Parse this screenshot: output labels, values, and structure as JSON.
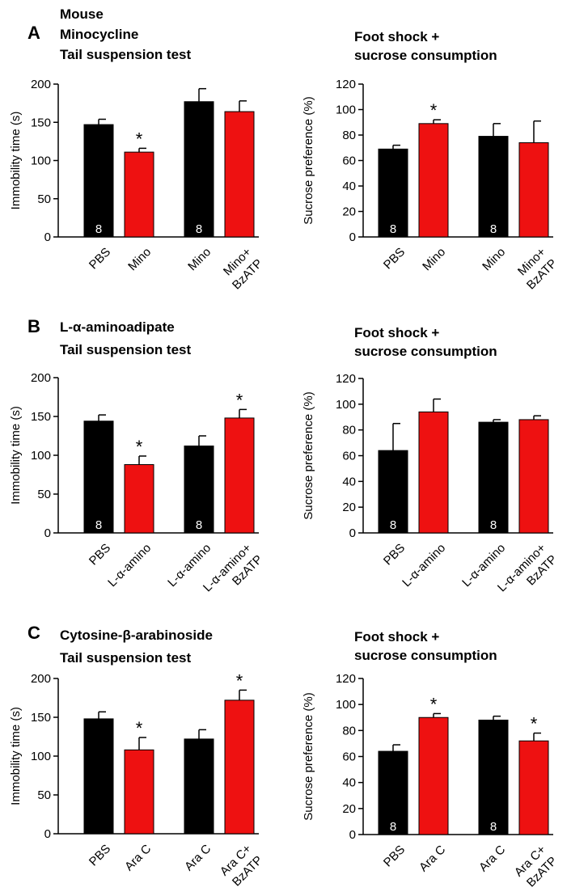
{
  "panels": [
    {
      "letter": "A",
      "heading": [
        "Mouse",
        "Minocycline",
        "Tail suspension test"
      ],
      "right_heading": [
        "Foot shock +",
        "sucrose consumption"
      ]
    },
    {
      "letter": "B",
      "heading": [
        "L-α-aminoadipate",
        "Tail suspension test"
      ],
      "right_heading": [
        "Foot shock +",
        "sucrose consumption"
      ]
    },
    {
      "letter": "C",
      "heading": [
        "Cytosine-β-arabinoside",
        "Tail suspension test"
      ],
      "right_heading": [
        "Foot shock +",
        "sucrose consumption"
      ]
    }
  ],
  "colors": {
    "control": "#000000",
    "treated": "#ee1111"
  },
  "chart_data": [
    {
      "type": "bar",
      "panel": "A",
      "ylabel": "Immobility time (s)",
      "ylim": [
        0,
        200
      ],
      "yticks": [
        0,
        50,
        100,
        150,
        200
      ],
      "categories": [
        [
          "PBS"
        ],
        [
          "Mino"
        ],
        [
          "Mino"
        ],
        [
          "Mino+",
          "BzATP"
        ]
      ],
      "values": [
        147,
        111,
        177,
        164
      ],
      "errors": [
        7,
        5,
        17,
        14
      ],
      "fills": [
        "control",
        "treated",
        "control",
        "treated"
      ],
      "stars": [
        "",
        "*",
        "",
        ""
      ],
      "n_labels": [
        "8",
        "",
        "8",
        ""
      ]
    },
    {
      "type": "bar",
      "panel": "A",
      "ylabel": "Sucrose preference (%)",
      "ylim": [
        0,
        120
      ],
      "yticks": [
        0,
        20,
        40,
        60,
        80,
        100,
        120
      ],
      "categories": [
        [
          "PBS"
        ],
        [
          "Mino"
        ],
        [
          "Mino"
        ],
        [
          "Mino+",
          "BzATP"
        ]
      ],
      "values": [
        69,
        89,
        79,
        74
      ],
      "errors": [
        3,
        3,
        10,
        17
      ],
      "fills": [
        "control",
        "treated",
        "control",
        "treated"
      ],
      "stars": [
        "",
        "*",
        "",
        ""
      ],
      "n_labels": [
        "8",
        "",
        "8",
        ""
      ]
    },
    {
      "type": "bar",
      "panel": "B",
      "ylabel": "Immobility time (s)",
      "ylim": [
        0,
        200
      ],
      "yticks": [
        0,
        50,
        100,
        150,
        200
      ],
      "categories": [
        [
          "PBS"
        ],
        [
          "L-α-amino"
        ],
        [
          "L-α-amino"
        ],
        [
          "L-α-amino+",
          "BzATP"
        ]
      ],
      "values": [
        144,
        88,
        112,
        148
      ],
      "errors": [
        8,
        11,
        13,
        11
      ],
      "fills": [
        "control",
        "treated",
        "control",
        "treated"
      ],
      "stars": [
        "",
        "*",
        "",
        "*"
      ],
      "n_labels": [
        "8",
        "",
        "8",
        ""
      ]
    },
    {
      "type": "bar",
      "panel": "B",
      "ylabel": "Sucrose preference (%)",
      "ylim": [
        0,
        120
      ],
      "yticks": [
        0,
        20,
        40,
        60,
        80,
        100,
        120
      ],
      "categories": [
        [
          "PBS"
        ],
        [
          "L-α-amino"
        ],
        [
          "L-α-amino"
        ],
        [
          "L-α-amino+",
          "BzATP"
        ]
      ],
      "values": [
        64,
        94,
        86,
        88
      ],
      "errors": [
        21,
        10,
        2,
        3
      ],
      "fills": [
        "control",
        "treated",
        "control",
        "treated"
      ],
      "stars": [
        "",
        "",
        "",
        ""
      ],
      "n_labels": [
        "8",
        "",
        "8",
        ""
      ]
    },
    {
      "type": "bar",
      "panel": "C",
      "ylabel": "Immobility time (s)",
      "ylim": [
        0,
        200
      ],
      "yticks": [
        0,
        50,
        100,
        150,
        200
      ],
      "categories": [
        [
          "PBS"
        ],
        [
          "Ara C"
        ],
        [
          "Ara C"
        ],
        [
          "Ara C+",
          "BzATP"
        ]
      ],
      "values": [
        148,
        108,
        122,
        172
      ],
      "errors": [
        9,
        16,
        12,
        13
      ],
      "fills": [
        "control",
        "treated",
        "control",
        "treated"
      ],
      "stars": [
        "",
        "*",
        "",
        "*"
      ],
      "n_labels": [
        "",
        "",
        "",
        ""
      ]
    },
    {
      "type": "bar",
      "panel": "C",
      "ylabel": "Sucrose preference (%)",
      "ylim": [
        0,
        120
      ],
      "yticks": [
        0,
        20,
        40,
        60,
        80,
        100,
        120
      ],
      "categories": [
        [
          "PBS"
        ],
        [
          "Ara C"
        ],
        [
          "Ara C"
        ],
        [
          "Ara C+",
          "BzATP"
        ]
      ],
      "values": [
        64,
        90,
        88,
        72
      ],
      "errors": [
        5,
        3,
        3,
        6
      ],
      "fills": [
        "control",
        "treated",
        "control",
        "treated"
      ],
      "stars": [
        "",
        "*",
        "",
        "*"
      ],
      "n_labels": [
        "8",
        "",
        "8",
        ""
      ]
    }
  ]
}
